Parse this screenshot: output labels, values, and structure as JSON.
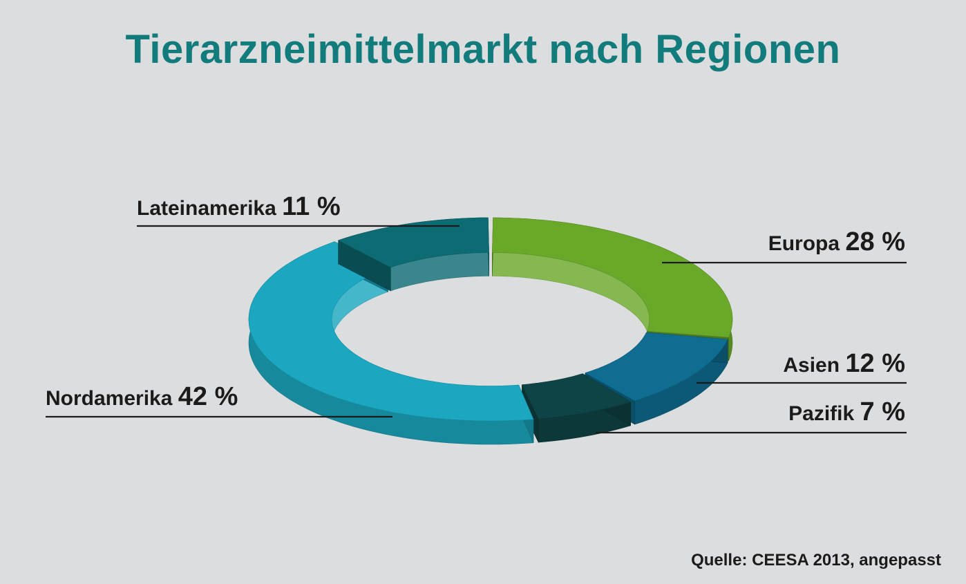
{
  "chart_data": {
    "type": "pie",
    "title": "Tierarzneimittelmarkt nach Regionen",
    "unit": "%",
    "slices": [
      {
        "label": "Europa",
        "value": 28,
        "display": "28 %",
        "color": "#6aa82a"
      },
      {
        "label": "Asien",
        "value": 12,
        "display": "12 %",
        "color": "#0e6d90"
      },
      {
        "label": "Pazifik",
        "value": 7,
        "display": "7 %",
        "color": "#0f4446"
      },
      {
        "label": "Nordamerika",
        "value": 42,
        "display": "42 %",
        "color": "#1ba7bf"
      },
      {
        "label": "Lateinamerika",
        "value": 11,
        "display": "11 %",
        "color": "#0d6b73"
      }
    ]
  },
  "source": "Quelle: CEESA 2013, angepasst"
}
